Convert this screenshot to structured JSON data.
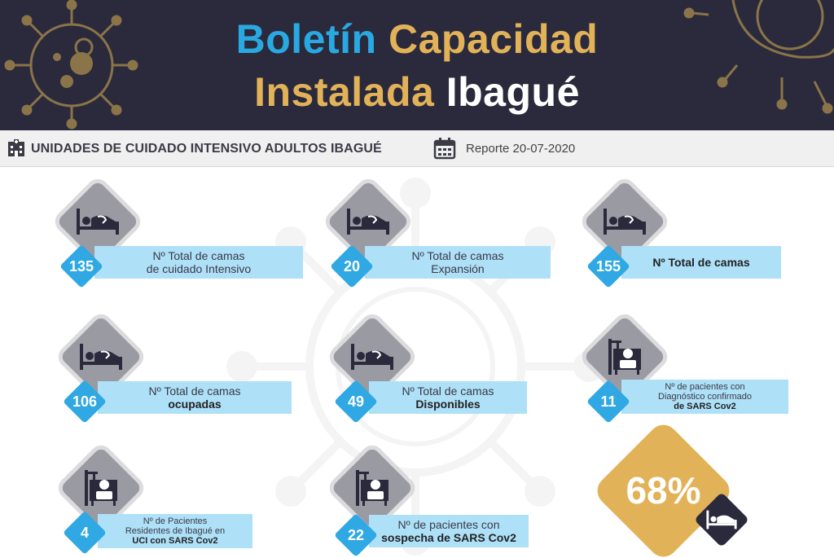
{
  "header": {
    "line1_word1": "Boletín",
    "line1_word2": "Capacidad",
    "line2_word1": "Instalada",
    "line2_word2": "Ibagué"
  },
  "subbar": {
    "title": "UNIDADES DE CUIDADO INTENSIVO ADULTOS IBAGUÉ",
    "report": "Reporte 20-07-2020",
    "icons": [
      "hospital-building-icon",
      "calendar-icon"
    ]
  },
  "cards": [
    {
      "value": "135",
      "line1": "Nº Total  de camas",
      "line2": "de cuidado Intensivo",
      "icon": "bed-patient-icon"
    },
    {
      "value": "20",
      "line1": "Nº Total  de camas",
      "line2": "Expansión",
      "icon": "bed-patient-icon"
    },
    {
      "value": "155",
      "line1": "Nº Total de camas",
      "line2": "",
      "icon": "bed-patient-icon"
    },
    {
      "value": "106",
      "line1": "Nº Total  de camas",
      "line2": "ocupadas",
      "icon": "bed-patient-icon"
    },
    {
      "value": "49",
      "line1": "Nº Total  de camas",
      "line2": "Disponibles",
      "icon": "bed-patient-icon"
    },
    {
      "value": "11",
      "line1": "Nº de pacientes con",
      "line2": "Diagnóstico confirmado",
      "line3": "de SARS Cov2",
      "icon": "patient-monitor-icon"
    },
    {
      "value": "4",
      "line1": "Nº de Pacientes",
      "line2": "Residentes de Ibagué en",
      "line3": "UCI con SARS Cov2",
      "icon": "patient-monitor-icon"
    },
    {
      "value": "22",
      "line1": "Nº de pacientes con",
      "line2": "sospecha de SARS Cov2",
      "icon": "patient-monitor-icon"
    }
  ],
  "occupancy": {
    "value": "68%",
    "icon": "bed-patient-icon"
  },
  "colors": {
    "header_bg": "#2b2a3d",
    "blue": "#29a9e1",
    "gold": "#e2b259",
    "label_bg": "#aee0f8",
    "icon_bg": "#9a9aa2"
  }
}
